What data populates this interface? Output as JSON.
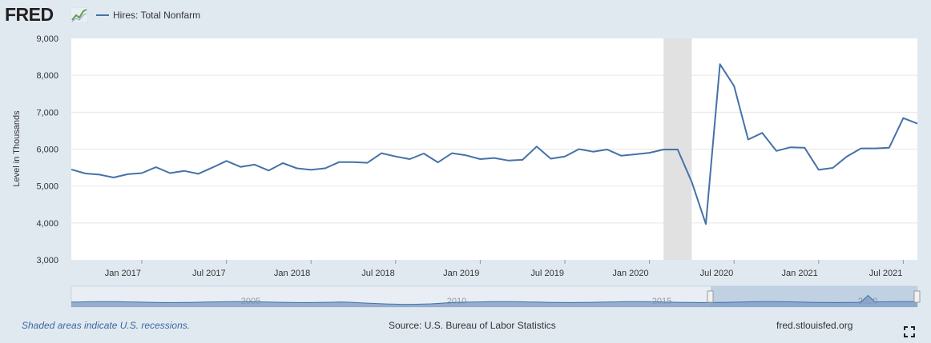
{
  "header": {
    "logo_text": "FRED",
    "logo_mark_icon": "chart-line-icon",
    "legend_label": "Hires: Total Nonfarm",
    "series_color": "#4572a7"
  },
  "footer": {
    "recession_note": "Shaded areas indicate U.S. recessions.",
    "source": "Source: U.S. Bureau of Labor Statistics",
    "site": "fred.stlouisfed.org",
    "fullscreen_icon": "fullscreen-icon"
  },
  "navigator": {
    "labels": [
      "2005",
      "2010",
      "2015",
      "2020"
    ]
  },
  "chart_data": {
    "type": "line",
    "title": "",
    "xlabel": "",
    "ylabel": "Level in Thousands",
    "ylim": [
      3000,
      9000
    ],
    "yticks": [
      3000,
      4000,
      5000,
      6000,
      7000,
      8000,
      9000
    ],
    "ytick_labels": [
      "3,000",
      "4,000",
      "5,000",
      "6,000",
      "7,000",
      "8,000",
      "9,000"
    ],
    "xlim": [
      "2016-08",
      "2021-08"
    ],
    "xtick_labels": [
      {
        "date": "2017-01",
        "label": "Jan 2017"
      },
      {
        "date": "2017-07",
        "label": "Jul 2017"
      },
      {
        "date": "2018-01",
        "label": "Jan 2018"
      },
      {
        "date": "2018-07",
        "label": "Jul 2018"
      },
      {
        "date": "2019-01",
        "label": "Jan 2019"
      },
      {
        "date": "2019-07",
        "label": "Jul 2019"
      },
      {
        "date": "2020-01",
        "label": "Jan 2020"
      },
      {
        "date": "2020-07",
        "label": "Jul 2020"
      },
      {
        "date": "2021-01",
        "label": "Jan 2021"
      },
      {
        "date": "2021-07",
        "label": "Jul 2021"
      }
    ],
    "recessions": [
      {
        "start": "2020-02",
        "end": "2020-04"
      }
    ],
    "grid": true,
    "series": [
      {
        "name": "Hires: Total Nonfarm",
        "color": "#4572a7",
        "x": [
          "2016-08",
          "2016-09",
          "2016-10",
          "2016-11",
          "2016-12",
          "2017-01",
          "2017-02",
          "2017-03",
          "2017-04",
          "2017-05",
          "2017-06",
          "2017-07",
          "2017-08",
          "2017-09",
          "2017-10",
          "2017-11",
          "2017-12",
          "2018-01",
          "2018-02",
          "2018-03",
          "2018-04",
          "2018-05",
          "2018-06",
          "2018-07",
          "2018-08",
          "2018-09",
          "2018-10",
          "2018-11",
          "2018-12",
          "2019-01",
          "2019-02",
          "2019-03",
          "2019-04",
          "2019-05",
          "2019-06",
          "2019-07",
          "2019-08",
          "2019-09",
          "2019-10",
          "2019-11",
          "2019-12",
          "2020-01",
          "2020-02",
          "2020-03",
          "2020-04",
          "2020-05",
          "2020-06",
          "2020-07",
          "2020-08",
          "2020-09",
          "2020-10",
          "2020-11",
          "2020-12",
          "2021-01",
          "2021-02",
          "2021-03",
          "2021-04",
          "2021-05",
          "2021-06",
          "2021-07",
          "2021-08"
        ],
        "values": [
          5450,
          5340,
          5310,
          5230,
          5320,
          5350,
          5510,
          5350,
          5410,
          5330,
          5500,
          5680,
          5520,
          5580,
          5420,
          5620,
          5480,
          5440,
          5480,
          5650,
          5650,
          5630,
          5890,
          5800,
          5730,
          5880,
          5640,
          5890,
          5830,
          5730,
          5760,
          5690,
          5710,
          6070,
          5740,
          5800,
          6000,
          5930,
          5990,
          5820,
          5860,
          5900,
          5990,
          5990,
          5110,
          3970,
          8300,
          7710,
          6260,
          6440,
          5950,
          6050,
          6040,
          5440,
          5490,
          5800,
          6020,
          6020,
          6040,
          6840,
          6690
        ]
      }
    ]
  }
}
